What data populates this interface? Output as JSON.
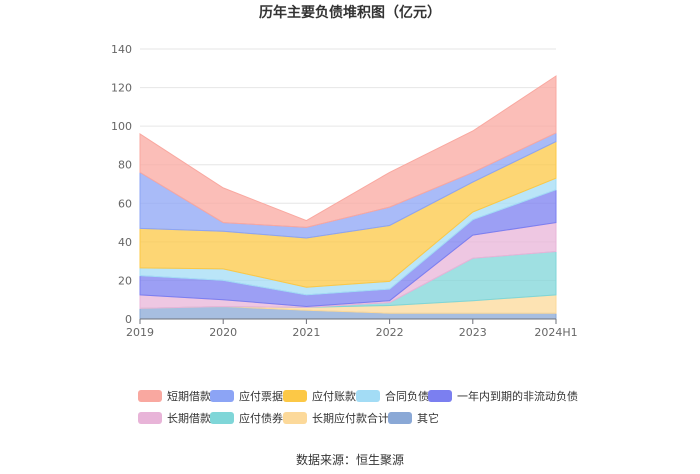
{
  "chart_data": {
    "type": "area",
    "stacked": true,
    "title": "历年主要负债堆积图（亿元）",
    "categories": [
      "2019",
      "2020",
      "2021",
      "2022",
      "2023",
      "2024H1"
    ],
    "ylim": [
      0,
      140
    ],
    "yticks": [
      "0",
      "20",
      "40",
      "60",
      "80",
      "100",
      "120",
      "140"
    ],
    "grid": true,
    "legend_position": "bottom",
    "series": [
      {
        "name": "其它",
        "color": "#8aa8d6",
        "values": [
          5.5,
          6.5,
          4.5,
          3,
          3,
          3
        ]
      },
      {
        "name": "长期应付款合计",
        "color": "#fcd99a",
        "values": [
          0,
          0,
          1.5,
          4,
          6.5,
          9.5
        ]
      },
      {
        "name": "应付债券",
        "color": "#7fd6d8",
        "values": [
          0,
          0,
          0,
          1.5,
          22,
          22.5
        ]
      },
      {
        "name": "长期借款",
        "color": "#e8b4d8",
        "values": [
          7,
          3.5,
          0.5,
          1,
          12,
          15
        ]
      },
      {
        "name": "一年内到期的非流动负债",
        "color": "#7b7ff0",
        "values": [
          10,
          10,
          6,
          6,
          8,
          17
        ]
      },
      {
        "name": "合同负债",
        "color": "#a3dcf5",
        "values": [
          4,
          6,
          4,
          4,
          4,
          6
        ]
      },
      {
        "name": "应付账款",
        "color": "#fcc846",
        "values": [
          20.5,
          19.5,
          25.5,
          29,
          15.5,
          19
        ]
      },
      {
        "name": "应付票据",
        "color": "#8ca4f5",
        "values": [
          29,
          4.5,
          5.5,
          9.5,
          5,
          4.5
        ]
      },
      {
        "name": "短期借款",
        "color": "#f9a8a0",
        "values": [
          20,
          18,
          3.5,
          18,
          21.5,
          29.5
        ]
      }
    ]
  },
  "legend_items": [
    {
      "label": "短期借款",
      "color": "#f9a8a0"
    },
    {
      "label": "应付票据",
      "color": "#8ca4f5"
    },
    {
      "label": "应付账款",
      "color": "#fcc846"
    },
    {
      "label": "合同负债",
      "color": "#a3dcf5"
    },
    {
      "label": "一年内到期的非流动负债",
      "color": "#7b7ff0"
    },
    {
      "label": "长期借款",
      "color": "#e8b4d8"
    },
    {
      "label": "应付债券",
      "color": "#7fd6d8"
    },
    {
      "label": "长期应付款合计",
      "color": "#fcd99a"
    },
    {
      "label": "其它",
      "color": "#8aa8d6"
    }
  ],
  "source": "数据来源：恒生聚源"
}
